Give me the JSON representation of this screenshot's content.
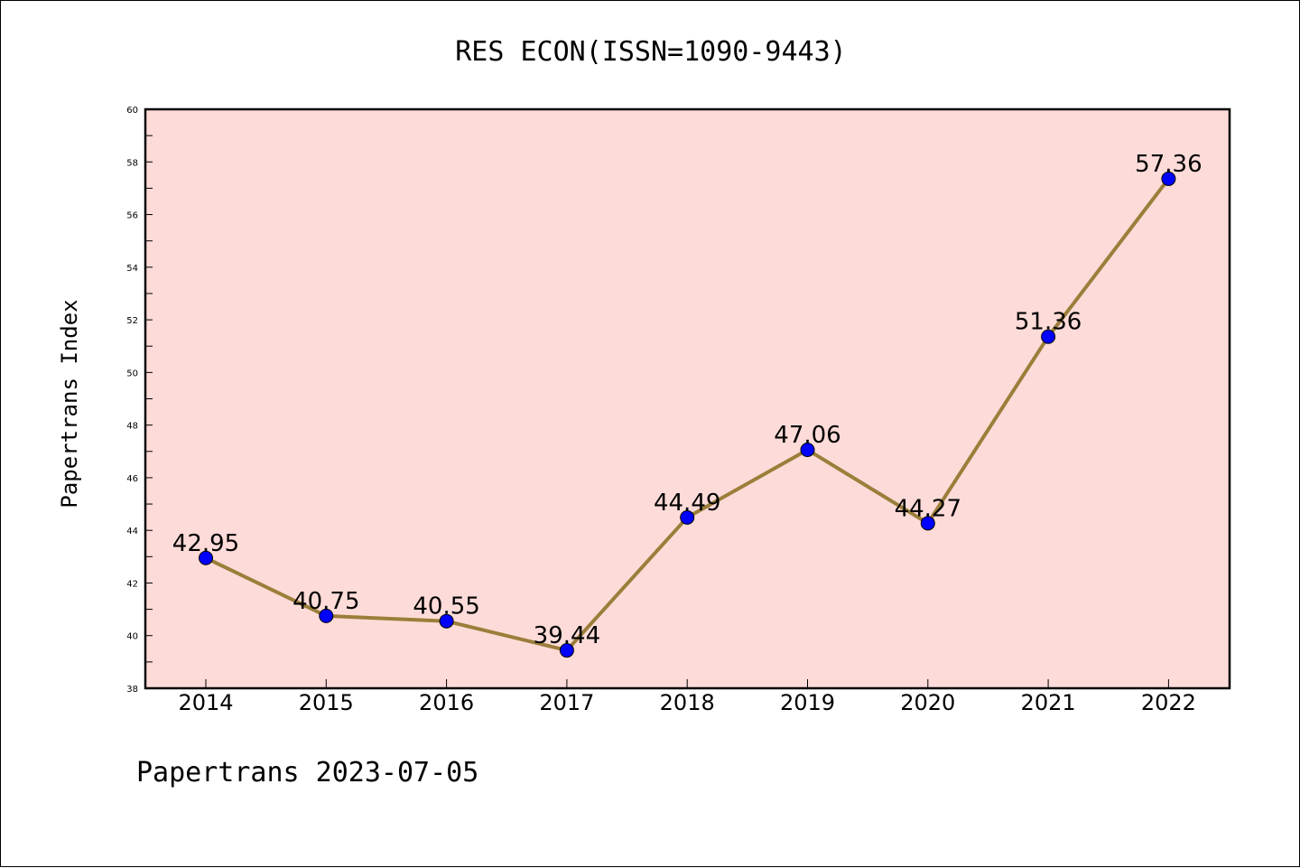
{
  "footer_text": "Papertrans 2023-07-05",
  "colors": {
    "plot_background": "#fddbd8",
    "line": "#9b7e3a",
    "marker": "#0000ff"
  },
  "chart_data": {
    "type": "line",
    "title": "RES ECON(ISSN=1090-9443)",
    "xlabel": "",
    "ylabel": "Papertrans Index",
    "categories": [
      "2014",
      "2015",
      "2016",
      "2017",
      "2018",
      "2019",
      "2020",
      "2021",
      "2022"
    ],
    "series": [
      {
        "values": [
          42.95,
          40.75,
          40.55,
          39.44,
          44.49,
          47.06,
          44.27,
          51.36,
          57.36
        ],
        "labels": [
          "42.95",
          "40.75",
          "40.55",
          "39.44",
          "44.49",
          "47.06",
          "44.27",
          "51.36",
          "57.36"
        ]
      }
    ],
    "ylim": [
      38,
      60
    ],
    "yticks": [
      "38",
      "40",
      "42",
      "44",
      "46",
      "48",
      "50",
      "52",
      "54",
      "56",
      "58",
      "60"
    ],
    "grid": false,
    "legend": "none"
  }
}
